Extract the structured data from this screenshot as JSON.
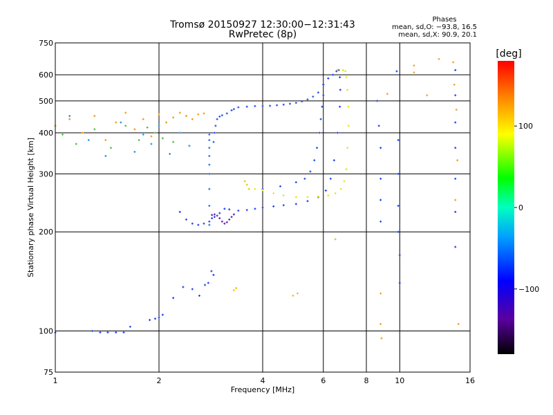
{
  "chart_data": {
    "type": "scatter",
    "title": "Tromsø 20150927 12:30:00−12:31:43",
    "subtitle": "RwPretec (8p)",
    "xlabel": "Frequency [MHz]",
    "ylabel": "Stationary phase Virtual Height [km]",
    "x_scale": "log",
    "y_scale": "log",
    "xlim": [
      1,
      16
    ],
    "ylim": [
      75,
      750
    ],
    "x_ticks": [
      1,
      2,
      4,
      6,
      8,
      10,
      16
    ],
    "x_tick_labels": [
      "1",
      "2",
      "4",
      "6",
      "8",
      "10",
      "16"
    ],
    "y_ticks": [
      75,
      100,
      200,
      300,
      400,
      500,
      600,
      750
    ],
    "y_tick_labels": [
      "75",
      "100",
      "200",
      "300",
      "400",
      "500",
      "600",
      "750"
    ],
    "grid": true,
    "stats": {
      "heading": "Phases",
      "line_o": "mean, sd,O: −93.8, 16.5",
      "line_x": "mean, sd,X:  90.9, 20.1"
    },
    "colorbar": {
      "label": "[deg]",
      "range": [
        -180,
        180
      ],
      "ticks": [
        100,
        0,
        -100
      ],
      "tick_labels": [
        "100",
        "0",
        "−100"
      ]
    },
    "series": [
      {
        "name": "",
        "phase_deg": -95,
        "color": "#1f3ff0",
        "x": [
          1.0,
          1.28,
          1.35,
          1.42,
          1.5,
          1.58,
          1.65,
          1.88,
          1.95,
          2.0,
          2.05,
          2.2,
          2.35,
          2.5,
          2.62,
          2.72,
          2.78,
          2.84,
          2.88
        ],
        "y": [
          99,
          100,
          99,
          99,
          99,
          99,
          103,
          108,
          109,
          110,
          112,
          126,
          136,
          134,
          128,
          138,
          140,
          152,
          148
        ]
      },
      {
        "name": "",
        "phase_deg": -95,
        "color": "#1f3ff0",
        "x": [
          2.3,
          2.4,
          2.5,
          2.6,
          2.7,
          2.8,
          2.85,
          2.9,
          3.0,
          3.1,
          3.2,
          3.4,
          3.6,
          3.8,
          4.0,
          4.3,
          4.6,
          5.0,
          5.4,
          5.8,
          6.1,
          6.3,
          6.45,
          6.6,
          6.7,
          6.72,
          6.7,
          6.65,
          6.55,
          6.4,
          6.2,
          6.0
        ],
        "y": [
          230,
          218,
          212,
          210,
          212,
          215,
          220,
          222,
          228,
          235,
          234,
          232,
          233,
          235,
          237,
          239,
          241,
          243,
          248,
          255,
          267,
          290,
          330,
          400,
          480,
          540,
          590,
          620,
          615,
          600,
          585,
          560
        ]
      },
      {
        "name": "",
        "phase_deg": -100,
        "color": "#2050e8",
        "x": [
          2.88,
          2.9,
          2.92,
          2.95,
          3.0,
          3.05,
          3.15,
          3.25,
          3.3,
          3.4,
          3.6,
          3.8,
          4.0,
          4.2,
          4.4,
          4.6,
          4.8,
          5.0,
          5.2,
          5.4,
          5.6,
          5.8,
          6.0
        ],
        "y": [
          375,
          400,
          420,
          440,
          448,
          452,
          458,
          468,
          472,
          478,
          480,
          482,
          482,
          483,
          485,
          487,
          490,
          493,
          498,
          505,
          515,
          530,
          560
        ]
      },
      {
        "name": "",
        "phase_deg": -100,
        "color": "#1a4fd8",
        "x": [
          4.0,
          4.5,
          5.0,
          5.3,
          5.5,
          5.65,
          5.75,
          5.85,
          5.9,
          5.95,
          6.0
        ],
        "y": [
          270,
          275,
          283,
          290,
          305,
          330,
          360,
          400,
          440,
          480,
          520
        ]
      },
      {
        "name": "",
        "phase_deg": -90,
        "color": "#2a6ae0",
        "x": [
          2.8,
          2.8,
          2.8,
          2.8,
          2.8,
          2.8,
          2.8,
          2.8,
          2.8
        ],
        "y": [
          210,
          240,
          270,
          300,
          320,
          340,
          360,
          380,
          395
        ]
      },
      {
        "name": "",
        "phase_deg": -130,
        "color": "#5a1ab0",
        "x": [
          2.85,
          2.9,
          2.95,
          3.0,
          3.05,
          3.1,
          3.15,
          3.2,
          3.25,
          3.3
        ],
        "y": [
          225,
          226,
          224,
          220,
          215,
          212,
          214,
          218,
          222,
          226
        ]
      },
      {
        "name": "",
        "phase_deg": 100,
        "color": "#e8e800",
        "x": [
          3.8,
          4.0,
          4.3,
          4.6,
          5.0,
          5.4,
          5.8,
          6.2,
          6.5,
          6.75,
          6.9,
          7.0,
          7.05,
          7.1,
          7.1,
          7.05,
          7.0,
          6.95,
          6.85
        ],
        "y": [
          270,
          268,
          262,
          258,
          255,
          255,
          256,
          258,
          262,
          270,
          285,
          310,
          360,
          420,
          480,
          540,
          590,
          615,
          620
        ]
      },
      {
        "name": "",
        "phase_deg": 110,
        "color": "#f0c000",
        "x": [
          3.55,
          3.6,
          3.65,
          3.3,
          3.35,
          5.05,
          4.9,
          6.5,
          6.6
        ],
        "y": [
          285,
          278,
          270,
          133,
          135,
          130,
          128,
          190,
          620
        ]
      },
      {
        "name": "",
        "phase_deg": 140,
        "color": "#f09a10",
        "x": [
          1.0,
          1.1,
          1.2,
          1.3,
          1.4,
          1.5,
          1.6,
          1.7,
          1.8,
          1.9,
          2.0,
          2.1,
          2.2,
          2.3,
          2.4,
          2.5,
          2.6,
          2.7
        ],
        "y": [
          420,
          440,
          400,
          450,
          380,
          430,
          460,
          410,
          440,
          390,
          455,
          430,
          445,
          460,
          450,
          440,
          455,
          458
        ]
      },
      {
        "name": "",
        "phase_deg": 30,
        "color": "#40c040",
        "x": [
          1.05,
          1.15,
          1.3,
          1.45,
          1.6,
          1.75,
          1.85,
          1.95,
          2.05,
          2.2
        ],
        "y": [
          395,
          370,
          410,
          360,
          420,
          380,
          415,
          400,
          385,
          375
        ]
      },
      {
        "name": "",
        "phase_deg": -70,
        "color": "#2090f0",
        "x": [
          1.1,
          1.25,
          1.4,
          1.55,
          1.7,
          1.8,
          1.9,
          2.0,
          2.15,
          2.3,
          2.45
        ],
        "y": [
          450,
          380,
          340,
          430,
          350,
          395,
          370,
          420,
          345,
          400,
          365
        ]
      },
      {
        "name": "",
        "phase_deg": -95,
        "color": "#1f3ff0",
        "x": [
          8.6,
          8.7,
          8.8,
          8.8,
          8.8,
          8.8,
          9.8,
          9.9,
          9.9,
          9.9,
          9.9,
          10.0,
          10.0,
          14.5,
          14.5,
          14.5,
          14.5,
          14.5,
          14.5,
          14.5
        ],
        "y": [
          500,
          420,
          360,
          290,
          250,
          215,
          615,
          380,
          300,
          240,
          200,
          170,
          140,
          620,
          520,
          430,
          360,
          290,
          230,
          180
        ]
      },
      {
        "name": "",
        "phase_deg": 130,
        "color": "#f0a020",
        "x": [
          8.8,
          8.8,
          8.85,
          9.2,
          11.0,
          11.0,
          12.0,
          13.0,
          14.3,
          14.4,
          14.6,
          14.7,
          14.8,
          14.5
        ],
        "y": [
          130,
          105,
          95,
          525,
          640,
          610,
          520,
          670,
          655,
          560,
          470,
          330,
          105,
          250
        ]
      }
    ]
  }
}
